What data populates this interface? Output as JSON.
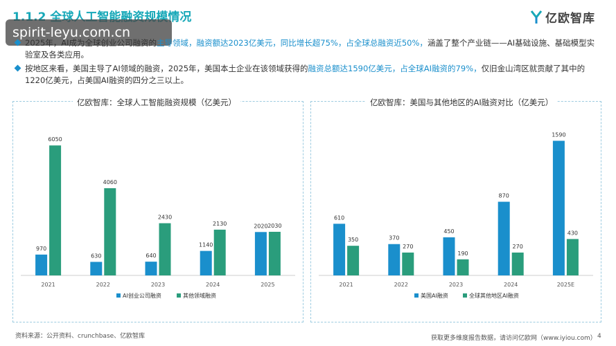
{
  "header": {
    "title": "1.1.2 全球人工智能融资规模情况",
    "watermark": "spirit-leyu.com.cn",
    "logo_text": "亿欧智库"
  },
  "bullets": [
    {
      "pre": "2025年，AI成为全球创业公司融资的",
      "hl": "主导领域，融资额达2023亿美元，同比增长超75%，占全球总融资近50%，",
      "post": "涵盖了整个产业链——AI基础设施、基础模型实验室及各类应用。"
    },
    {
      "pre": "按地区来看，美国主导了AI领域的融资，2025年，美国本土企业在该领域获得的",
      "hl": "融资总额达1590亿美元，占全球AI融资的79%，",
      "post": "仅旧金山湾区就贡献了其中的1220亿美元，占美国AI融资的四分之三以上。"
    }
  ],
  "chart_data": [
    {
      "type": "bar",
      "title": "亿欧智库：全球人工智能融资规模（亿美元）",
      "categories": [
        "2021",
        "2022",
        "2023",
        "2024",
        "2025"
      ],
      "series": [
        {
          "name": "AI创业公司融资",
          "values": [
            970,
            630,
            640,
            1140,
            2020
          ],
          "color": "#1a8fcc"
        },
        {
          "name": "其他领域融资",
          "values": [
            6050,
            4060,
            2430,
            2130,
            2030
          ],
          "color": "#2a9d7c"
        }
      ],
      "ylim": [
        0,
        6700
      ],
      "legend": "bottom"
    },
    {
      "type": "bar",
      "title": "亿欧智库：美国与其他地区的AI融资对比（亿美元）",
      "categories": [
        "2021",
        "2022",
        "2023",
        "2024",
        "2025E"
      ],
      "series": [
        {
          "name": "美国AI融资",
          "values": [
            610,
            370,
            450,
            870,
            1590
          ],
          "color": "#1a8fcc"
        },
        {
          "name": "全球其他地区AI融资",
          "values": [
            350,
            270,
            190,
            270,
            430
          ],
          "color": "#2a9d7c"
        }
      ],
      "ylim": [
        0,
        1700
      ],
      "legend": "bottom"
    }
  ],
  "footer": {
    "source": "资料来源：公开资料、crunchbase、亿欧智库",
    "more": "获取更多维度报告数据，请访问亿欧网（www.iyiou.com）",
    "page": "4"
  }
}
